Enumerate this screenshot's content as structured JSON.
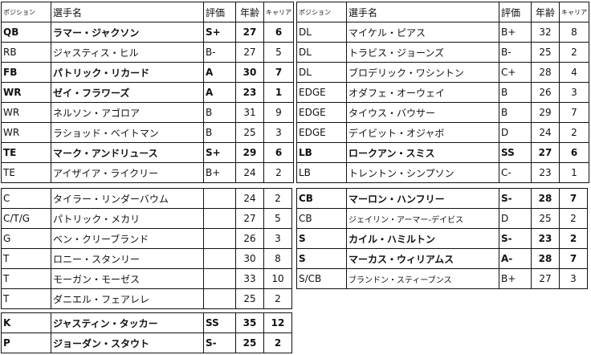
{
  "header": {
    "position": "ポジション",
    "name": "選手名",
    "grade": "評価",
    "age": "年齢",
    "career": "キャリア"
  },
  "tables": [
    {
      "id": "offense",
      "header": true,
      "rows": [
        {
          "position": "QB",
          "name": "ラマー・ジャクソン",
          "grade": "S+",
          "age": "27",
          "career": "6",
          "bold": true
        },
        {
          "position": "RB",
          "name": "ジャスティス・ヒル",
          "grade": "B-",
          "age": "27",
          "career": "5",
          "bold": false
        },
        {
          "position": "FB",
          "name": "パトリック・リカード",
          "grade": "A",
          "age": "30",
          "career": "7",
          "bold": true
        },
        {
          "position": "WR",
          "name": "ゼイ・フラワーズ",
          "grade": "A",
          "age": "23",
          "career": "1",
          "bold": true
        },
        {
          "position": "WR",
          "name": "ネルソン・アゴロア",
          "grade": "B",
          "age": "31",
          "career": "9",
          "bold": false
        },
        {
          "position": "WR",
          "name": "ラショッド・ベイトマン",
          "grade": "B",
          "age": "25",
          "career": "3",
          "bold": false
        },
        {
          "position": "TE",
          "name": "マーク・アンドリュース",
          "grade": "S+",
          "age": "29",
          "career": "6",
          "bold": true
        },
        {
          "position": "TE",
          "name": "アイザイア・ライクリー",
          "grade": "B+",
          "age": "24",
          "career": "2",
          "bold": false
        }
      ]
    },
    {
      "id": "defense-front",
      "header": true,
      "rows": [
        {
          "position": "DL",
          "name": "マイケル・ピアス",
          "grade": "B+",
          "age": "32",
          "career": "8",
          "bold": false
        },
        {
          "position": "DL",
          "name": "トラビス・ジョーンズ",
          "grade": "B-",
          "age": "25",
          "career": "2",
          "bold": false
        },
        {
          "position": "DL",
          "name": "ブロデリック・ワシントン",
          "grade": "C+",
          "age": "28",
          "career": "4",
          "bold": false
        },
        {
          "position": "EDGE",
          "name": "オダフェ・オーウェイ",
          "grade": "B",
          "age": "26",
          "career": "3",
          "bold": false
        },
        {
          "position": "EDGE",
          "name": "タイウス・バウサー",
          "grade": "B",
          "age": "29",
          "career": "7",
          "bold": false
        },
        {
          "position": "EDGE",
          "name": "デイビット・オジャボ",
          "grade": "D",
          "age": "24",
          "career": "2",
          "bold": false
        },
        {
          "position": "LB",
          "name": "ロークアン・スミス",
          "grade": "SS",
          "age": "27",
          "career": "6",
          "bold": true
        },
        {
          "position": "LB",
          "name": "トレントン・シンプソン",
          "grade": "C-",
          "age": "23",
          "career": "1",
          "bold": false
        }
      ]
    },
    {
      "id": "offensive-line",
      "header": false,
      "rows": [
        {
          "position": "C",
          "name": "タイラー・リンダーバウム",
          "grade": "",
          "age": "24",
          "career": "2",
          "bold": false
        },
        {
          "position": "C/T/G",
          "name": "パトリック・メカリ",
          "grade": "",
          "age": "27",
          "career": "5",
          "bold": false
        },
        {
          "position": "G",
          "name": "ベン・クリーブランド",
          "grade": "",
          "age": "26",
          "career": "3",
          "bold": false
        },
        {
          "position": "T",
          "name": "ロニー・スタンリー",
          "grade": "",
          "age": "30",
          "career": "8",
          "bold": false
        },
        {
          "position": "T",
          "name": "モーガン・モーゼス",
          "grade": "",
          "age": "33",
          "career": "10",
          "bold": false
        },
        {
          "position": "T",
          "name": "ダニエル・フェアレレ",
          "grade": "",
          "age": "25",
          "career": "2",
          "bold": false
        }
      ]
    },
    {
      "id": "secondary",
      "header": false,
      "rows": [
        {
          "position": "CB",
          "name": "マーロン・ハンフリー",
          "grade": "S-",
          "age": "28",
          "career": "7",
          "bold": true
        },
        {
          "position": "CB",
          "name": "ジェイリン・アーマー-デイビス",
          "grade": "D",
          "age": "25",
          "career": "2",
          "bold": false,
          "small": true
        },
        {
          "position": "S",
          "name": "カイル・ハミルトン",
          "grade": "S-",
          "age": "23",
          "career": "2",
          "bold": true
        },
        {
          "position": "S",
          "name": "マーカス・ウィリアムス",
          "grade": "A-",
          "age": "28",
          "career": "7",
          "bold": true
        },
        {
          "position": "S/CB",
          "name": "ブランドン・スティーブンス",
          "grade": "B+",
          "age": "27",
          "career": "3",
          "bold": false,
          "small": true
        }
      ]
    },
    {
      "id": "special-teams",
      "header": false,
      "rows": [
        {
          "position": "K",
          "name": "ジャスティン・タッカー",
          "grade": "SS",
          "age": "35",
          "career": "12",
          "bold": true
        },
        {
          "position": "P",
          "name": "ジョーダン・スタウト",
          "grade": "S-",
          "age": "25",
          "career": "2",
          "bold": true
        }
      ]
    }
  ]
}
